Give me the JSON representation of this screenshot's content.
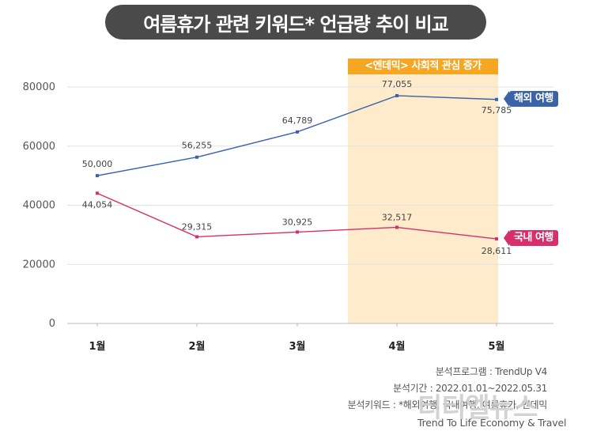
{
  "title": "여름휴가 관련 키워드* 언급량 추이 비교",
  "band_label": "<엔데믹> 사회적 관심 증가",
  "footer": {
    "line1": "분석프로그램 : TrendUp V4",
    "line2": "분석기간 : 2022.01.01~2022.05.31",
    "line3": "분석키워드 : *해외여행, 국내여행, 여름휴가, 엔데믹"
  },
  "watermark": {
    "logo_text": "티티엘뉴스",
    "tagline": "Trend To Life Economy & Travel"
  },
  "colors": {
    "overseas": "#3b63a8",
    "domestic": "#d62f6a",
    "band": "#fdebcc",
    "band_label": "#f5a623",
    "title_bg": "#4a4a4a"
  },
  "chart_data": {
    "type": "line",
    "categories": [
      "1월",
      "2월",
      "3월",
      "4월",
      "5월"
    ],
    "ylim": [
      0,
      80000
    ],
    "yticks": [
      0,
      20000,
      40000,
      60000,
      80000
    ],
    "highlight_categories": [
      "4월",
      "5월"
    ],
    "series": [
      {
        "name": "해외 여행",
        "color": "#3b63a8",
        "values": [
          50000,
          56255,
          64789,
          77055,
          75785
        ],
        "labels": [
          "50,000",
          "56,255",
          "64,789",
          "77,055",
          "75,785"
        ]
      },
      {
        "name": "국내 여행",
        "color": "#d62f6a",
        "values": [
          44054,
          29315,
          30925,
          32517,
          28611
        ],
        "labels": [
          "44,054",
          "29,315",
          "30,925",
          "32,517",
          "28,611"
        ]
      }
    ]
  }
}
